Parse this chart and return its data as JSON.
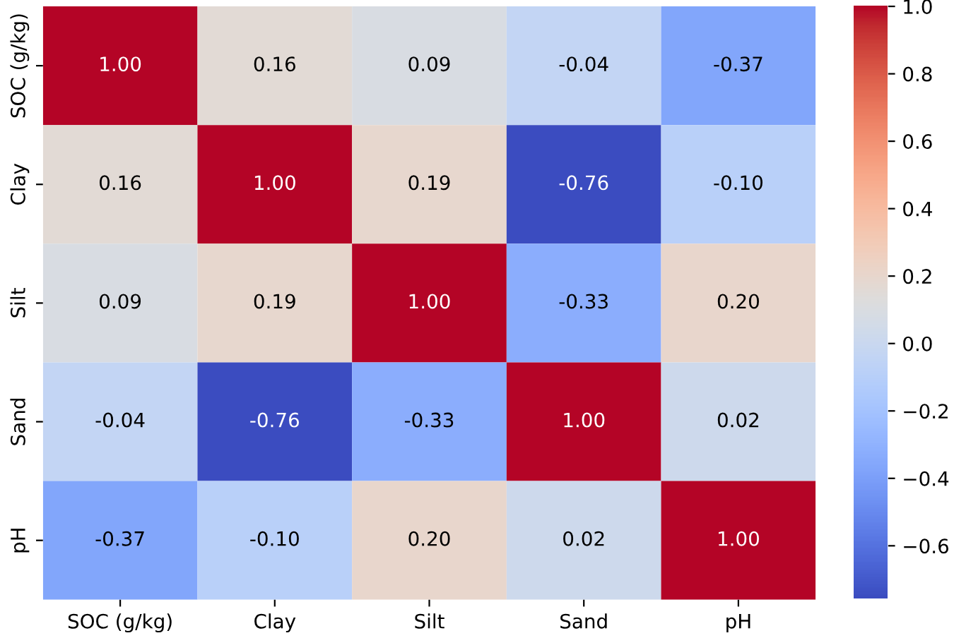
{
  "chart_data": {
    "type": "heatmap",
    "categories": [
      "SOC (g/kg)",
      "Clay",
      "Silt",
      "Sand",
      "pH"
    ],
    "y_categories": [
      "SOC (g/kg)",
      "Clay",
      "Silt",
      "Sand",
      "pH"
    ],
    "cells": [
      [
        1.0,
        0.16,
        0.09,
        -0.04,
        -0.37
      ],
      [
        0.16,
        1.0,
        0.19,
        -0.76,
        -0.1
      ],
      [
        0.09,
        0.19,
        1.0,
        -0.33,
        0.2
      ],
      [
        -0.04,
        -0.76,
        -0.33,
        1.0,
        0.02
      ],
      [
        -0.37,
        -0.1,
        0.2,
        0.02,
        1.0
      ]
    ],
    "cell_labels": [
      [
        "1.00",
        "0.16",
        "0.09",
        "-0.04",
        "-0.37"
      ],
      [
        "0.16",
        "1.00",
        "0.19",
        "-0.76",
        "-0.10"
      ],
      [
        "0.09",
        "0.19",
        "1.00",
        "-0.33",
        "0.20"
      ],
      [
        "-0.04",
        "-0.76",
        "-0.33",
        "1.00",
        "0.02"
      ],
      [
        "-0.37",
        "-0.10",
        "0.20",
        "0.02",
        "1.00"
      ]
    ],
    "clim": [
      -0.76,
      1.0
    ],
    "cticks": [
      {
        "value": -0.6,
        "label": "−0.6"
      },
      {
        "value": -0.4,
        "label": "−0.4"
      },
      {
        "value": -0.2,
        "label": "−0.2"
      },
      {
        "value": 0.0,
        "label": "0.0"
      },
      {
        "value": 0.2,
        "label": "0.2"
      },
      {
        "value": 0.4,
        "label": "0.4"
      },
      {
        "value": 0.6,
        "label": "0.6"
      },
      {
        "value": 0.8,
        "label": "0.8"
      },
      {
        "value": 1.0,
        "label": "1.0"
      }
    ]
  }
}
